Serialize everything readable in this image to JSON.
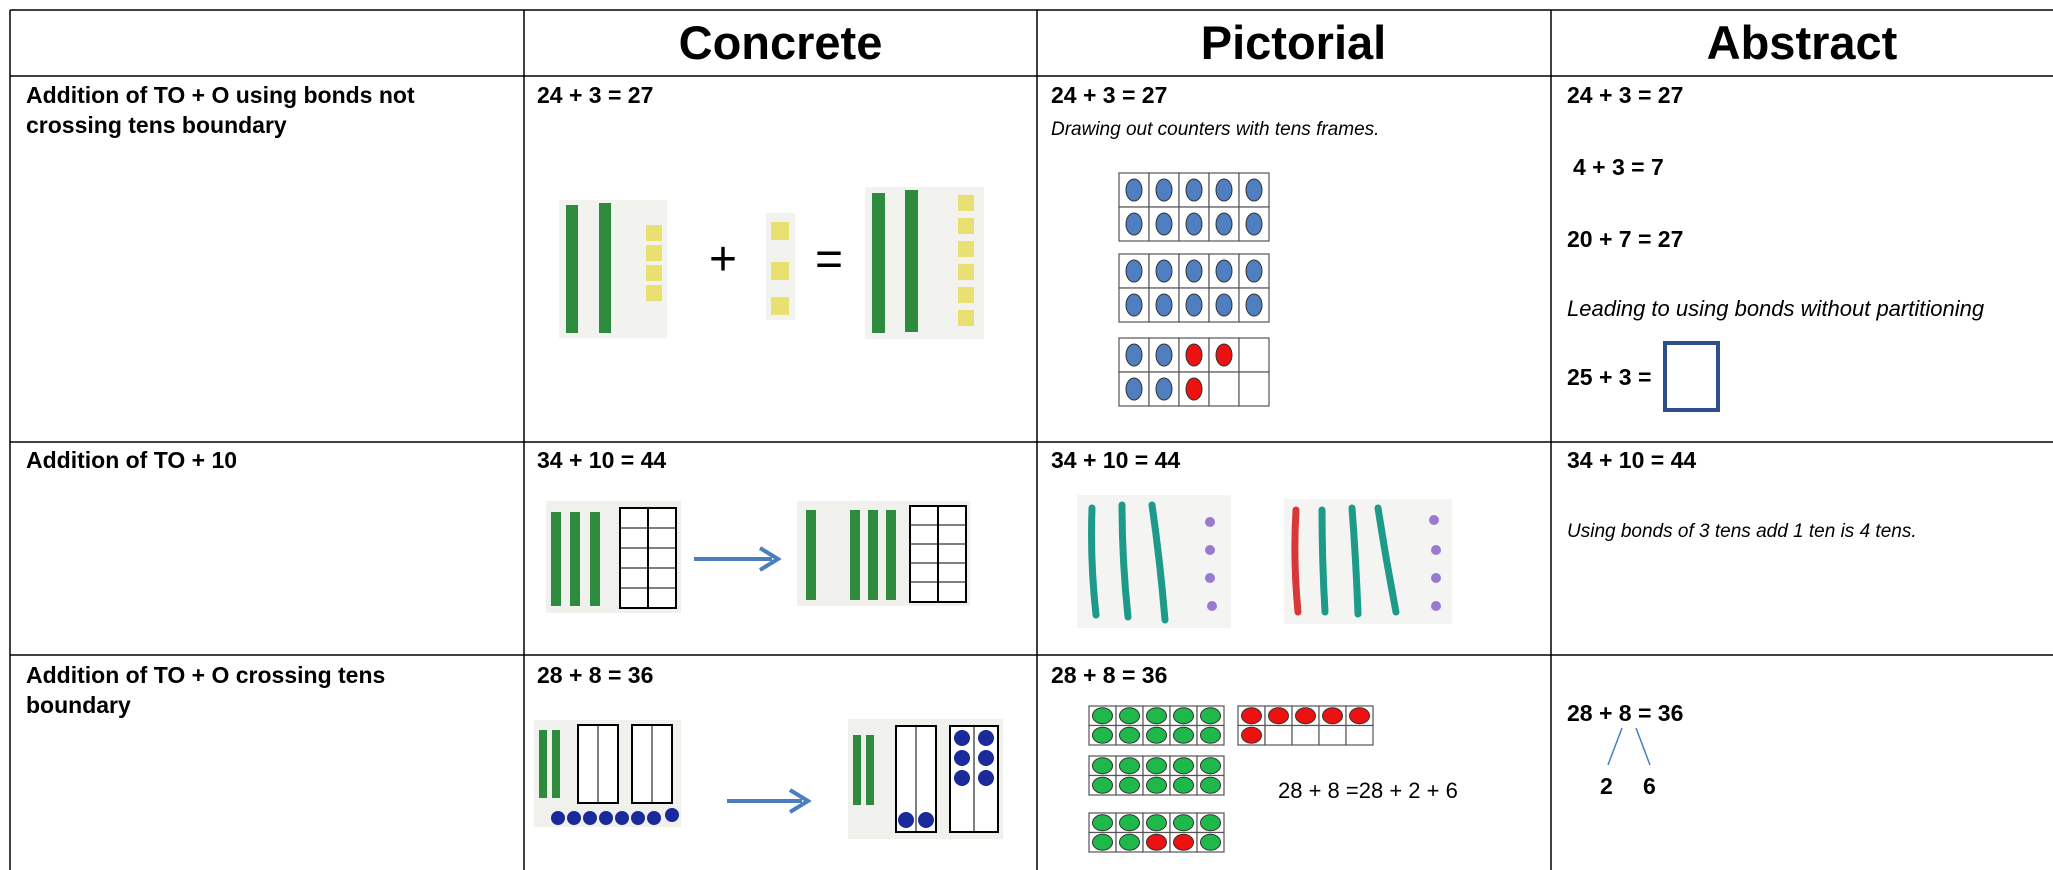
{
  "table": {
    "columns": [
      "Concrete",
      "Pictorial",
      "Abstract"
    ],
    "rows": [
      {
        "label": "Addition of TO + O using bonds not crossing tens boundary",
        "concrete": {
          "equation": "24 + 3 = 27",
          "plus": "+",
          "equals": "="
        },
        "pictorial": {
          "equation": "24 + 3 = 27",
          "caption": "Drawing out counters with tens frames."
        },
        "abstract": {
          "lines": [
            "24 + 3 = 27",
            "4 + 3 = 7",
            "20 + 7 = 27"
          ],
          "note": "Leading to using bonds without partitioning",
          "prompt": "25 + 3 ="
        }
      },
      {
        "label": "Addition of TO + 10",
        "concrete": {
          "equation": "34 + 10 = 44"
        },
        "pictorial": {
          "equation": "34 + 10 = 44"
        },
        "abstract": {
          "lines": [
            "34 + 10 = 44"
          ],
          "note": "Using bonds of 3 tens add 1 ten is 4 tens."
        }
      },
      {
        "label": "Addition of TO + O crossing tens boundary",
        "concrete": {
          "equation": "28 + 8 = 36"
        },
        "pictorial": {
          "equation": "28 + 8 = 36",
          "caption": "28 + 8 =28 + 2 + 6"
        },
        "abstract": {
          "lines": [
            "28 + 8 = 36"
          ],
          "parts": [
            "2",
            "6"
          ]
        }
      }
    ]
  }
}
